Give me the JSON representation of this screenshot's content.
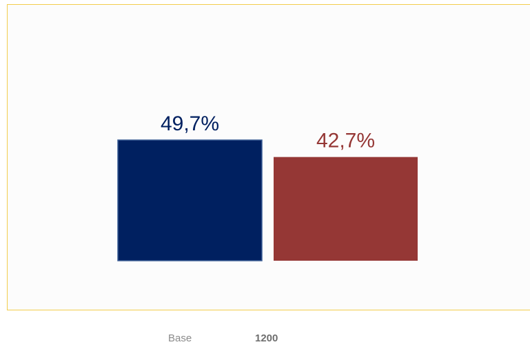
{
  "chart_data": {
    "type": "bar",
    "categories": [
      "",
      ""
    ],
    "values": [
      49.7,
      42.7
    ],
    "value_labels": [
      "49,7%",
      "42,7%"
    ],
    "colors": [
      "#002060",
      "#953735"
    ],
    "ylim": [
      0,
      100
    ],
    "legend": "none",
    "grid": false
  },
  "footer": {
    "base_label": "Base",
    "base_value": "1200"
  }
}
